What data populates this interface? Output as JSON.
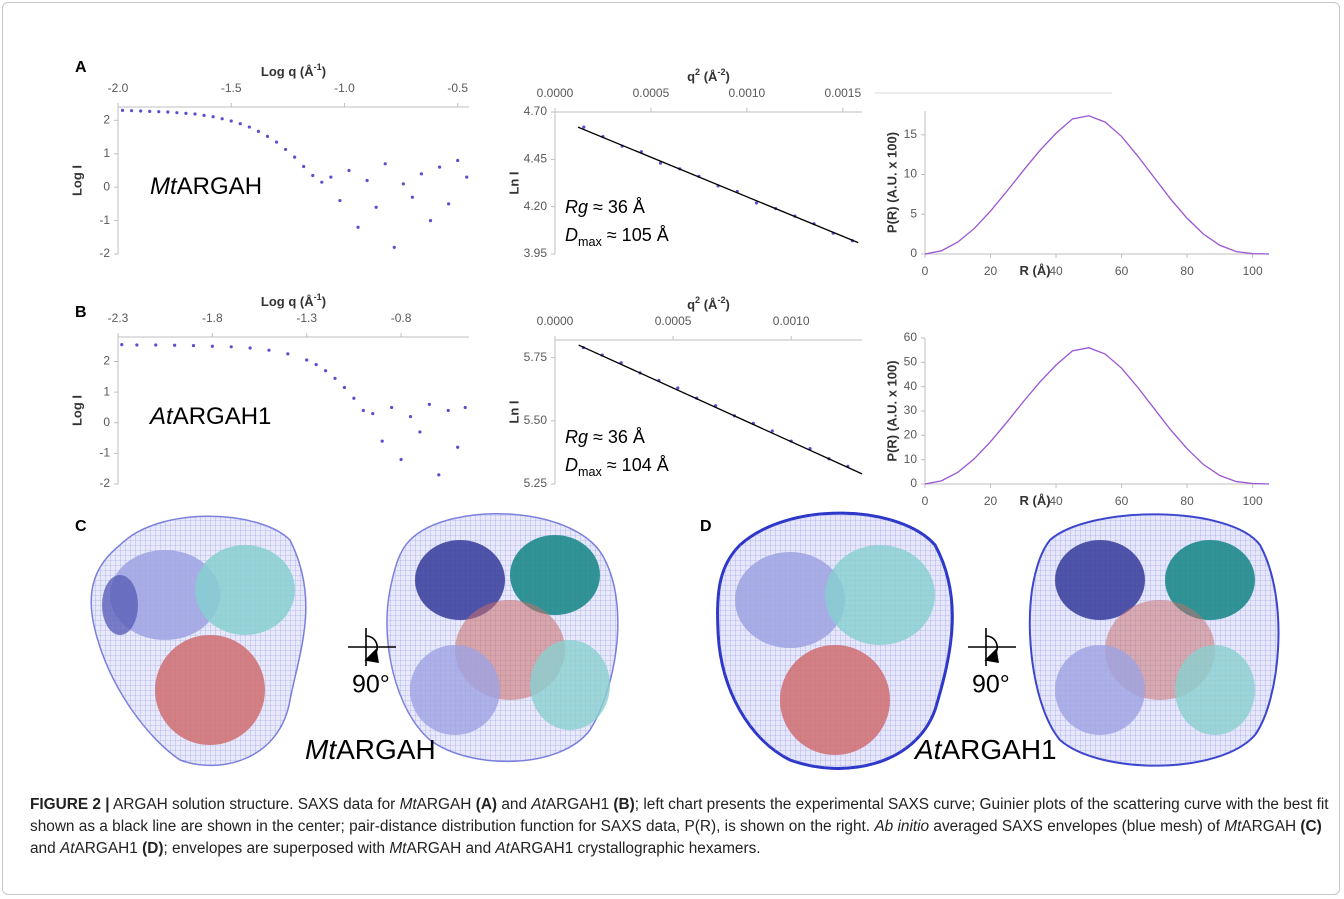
{
  "panel_labels": {
    "a": "A",
    "b": "B",
    "c": "C",
    "d": "D"
  },
  "chart_data": [
    {
      "type": "scatter",
      "xaxis": "top",
      "color": "#5a4fcf",
      "x_label": [
        {
          "text": "Log q (Å"
        },
        {
          "text": "-1",
          "style": "sup"
        },
        {
          "text": ")"
        }
      ],
      "y_label": "Log I",
      "x": [
        -1.98,
        -1.94,
        -1.9,
        -1.86,
        -1.82,
        -1.78,
        -1.74,
        -1.7,
        -1.66,
        -1.62,
        -1.58,
        -1.54,
        -1.5,
        -1.46,
        -1.42,
        -1.38,
        -1.34,
        -1.3,
        -1.26,
        -1.22,
        -1.18,
        -1.14,
        -1.1,
        -1.06,
        -1.02,
        -0.98,
        -0.94,
        -0.9,
        -0.86,
        -0.82,
        -0.78,
        -0.74,
        -0.7,
        -0.66,
        -0.62,
        -0.58,
        -0.54,
        -0.5,
        -0.46
      ],
      "values": [
        2.3,
        2.29,
        2.28,
        2.27,
        2.26,
        2.25,
        2.23,
        2.21,
        2.19,
        2.15,
        2.11,
        2.05,
        1.98,
        1.9,
        1.8,
        1.67,
        1.52,
        1.35,
        1.13,
        0.9,
        0.62,
        0.35,
        0.15,
        0.3,
        -0.4,
        0.5,
        -1.2,
        0.2,
        -0.6,
        0.7,
        -1.8,
        0.1,
        -0.3,
        0.4,
        -1.0,
        0.6,
        -0.5,
        0.8,
        0.3
      ],
      "xlim": [
        -2.0,
        -0.45
      ],
      "ylim": [
        -2,
        2.4
      ],
      "xticks": [
        {
          "value": -2,
          "label": "-2.0"
        },
        -1.5,
        {
          "value": -1,
          "label": "-1.0"
        },
        -0.5
      ],
      "yticks": [
        -2,
        -1,
        0,
        1,
        2
      ],
      "annotations": [
        [
          {
            "text": "Mt",
            "style": "italic"
          },
          {
            "text": "ARGAH"
          }
        ]
      ]
    },
    {
      "type": "scatter",
      "xaxis": "top",
      "color": "#5a4fcf",
      "x_label": [
        {
          "text": "q"
        },
        {
          "text": "2",
          "style": "sup"
        },
        {
          "text": " (Å"
        },
        {
          "text": "-2",
          "style": "sup"
        },
        {
          "text": ")"
        }
      ],
      "y_label": "Ln I",
      "x": [
        0.00015,
        0.00025,
        0.00035,
        0.00045,
        0.00055,
        0.00065,
        0.00075,
        0.00085,
        0.00095,
        0.00105,
        0.00115,
        0.00125,
        0.00135,
        0.00145,
        0.00155
      ],
      "values": [
        4.62,
        4.57,
        4.52,
        4.49,
        4.43,
        4.4,
        4.36,
        4.31,
        4.28,
        4.22,
        4.19,
        4.15,
        4.11,
        4.06,
        4.02
      ],
      "fit": {
        "x": [
          0.00012,
          0.00158
        ],
        "values": [
          4.62,
          4.01
        ],
        "color": "#000000"
      },
      "xlim": [
        0,
        0.0016
      ],
      "ylim": [
        3.95,
        4.7
      ],
      "xticks": [
        {
          "value": 0,
          "label": "0.0000"
        },
        0.0005,
        {
          "value": 0.001,
          "label": "0.0010"
        },
        0.0015
      ],
      "yticks": [
        3.95,
        {
          "value": 4.2,
          "label": "4.20"
        },
        4.45,
        {
          "value": 4.7,
          "label": "4.70"
        }
      ],
      "annotations": [
        [
          {
            "text": "Rg",
            "style": "italic"
          },
          {
            "text": " ≈ 36 Å"
          }
        ],
        [
          {
            "text": "D",
            "style": "italic"
          },
          {
            "text": "max",
            "style": "sub"
          },
          {
            "text": " ≈ 105 Å"
          }
        ]
      ]
    },
    {
      "type": "line",
      "xaxis": "bottom",
      "color": "#9b55d3",
      "x_label": [
        {
          "text": "R (Å)"
        }
      ],
      "y_label": "P(R) (A.U. x 100)",
      "x": [
        0,
        5,
        10,
        15,
        20,
        25,
        30,
        35,
        40,
        45,
        50,
        55,
        60,
        65,
        70,
        75,
        80,
        85,
        90,
        95,
        100,
        105
      ],
      "values": [
        0,
        0.4,
        1.5,
        3.2,
        5.4,
        7.9,
        10.5,
        13.0,
        15.2,
        17.0,
        17.4,
        16.6,
        14.8,
        12.3,
        9.6,
        6.9,
        4.5,
        2.5,
        1.1,
        0.3,
        0.05,
        0
      ],
      "xlim": [
        0,
        105
      ],
      "ylim": [
        0,
        18
      ],
      "xticks": [
        0,
        20,
        40,
        60,
        80,
        100
      ],
      "yticks": [
        0,
        5,
        10,
        15
      ]
    },
    {
      "type": "scatter",
      "xaxis": "top",
      "color": "#5a4fcf",
      "x_label": [
        {
          "text": "Log q (Å"
        },
        {
          "text": "-1",
          "style": "sup"
        },
        {
          "text": ")"
        }
      ],
      "y_label": "Log I",
      "x": [
        -2.28,
        -2.2,
        -2.1,
        -2.0,
        -1.9,
        -1.8,
        -1.7,
        -1.6,
        -1.5,
        -1.4,
        -1.3,
        -1.25,
        -1.2,
        -1.15,
        -1.1,
        -1.05,
        -1.0,
        -0.95,
        -0.9,
        -0.85,
        -0.8,
        -0.75,
        -0.7,
        -0.65,
        -0.6,
        -0.55,
        -0.5,
        -0.46
      ],
      "values": [
        2.55,
        2.54,
        2.54,
        2.53,
        2.52,
        2.5,
        2.48,
        2.44,
        2.37,
        2.25,
        2.05,
        1.9,
        1.7,
        1.45,
        1.15,
        0.8,
        0.4,
        0.3,
        -0.6,
        0.5,
        -1.2,
        0.2,
        -0.3,
        0.6,
        -1.7,
        0.4,
        -0.8,
        0.5
      ],
      "xlim": [
        -2.3,
        -0.44
      ],
      "ylim": [
        -2,
        2.8
      ],
      "xticks": [
        -2.3,
        -1.8,
        -1.3,
        -0.8
      ],
      "yticks": [
        -2,
        -1,
        0,
        1,
        2
      ],
      "annotations": [
        [
          {
            "text": "At",
            "style": "italic"
          },
          {
            "text": "ARGAH1"
          }
        ]
      ]
    },
    {
      "type": "scatter",
      "xaxis": "top",
      "color": "#5a4fcf",
      "x_label": [
        {
          "text": "q"
        },
        {
          "text": "2",
          "style": "sup"
        },
        {
          "text": " (Å"
        },
        {
          "text": "-2",
          "style": "sup"
        },
        {
          "text": ")"
        }
      ],
      "y_label": "Ln I",
      "x": [
        0.00012,
        0.0002,
        0.00028,
        0.00036,
        0.00044,
        0.00052,
        0.0006,
        0.00068,
        0.00076,
        0.00084,
        0.00092,
        0.001,
        0.00108,
        0.00116,
        0.00124
      ],
      "values": [
        5.79,
        5.76,
        5.73,
        5.69,
        5.66,
        5.63,
        5.59,
        5.56,
        5.52,
        5.49,
        5.46,
        5.42,
        5.39,
        5.35,
        5.32
      ],
      "fit": {
        "x": [
          0.0001,
          0.0013
        ],
        "values": [
          5.8,
          5.29
        ],
        "color": "#000000"
      },
      "xlim": [
        0,
        0.0013
      ],
      "ylim": [
        5.25,
        5.82
      ],
      "xticks": [
        {
          "value": 0,
          "label": "0.0000"
        },
        0.0005,
        {
          "value": 0.001,
          "label": "0.0010"
        }
      ],
      "yticks": [
        5.25,
        {
          "value": 5.5,
          "label": "5.50"
        },
        5.75
      ],
      "annotations": [
        [
          {
            "text": "Rg",
            "style": "italic"
          },
          {
            "text": " ≈ 36 Å"
          }
        ],
        [
          {
            "text": "D",
            "style": "italic"
          },
          {
            "text": "max",
            "style": "sub"
          },
          {
            "text": " ≈ 104 Å"
          }
        ]
      ]
    },
    {
      "type": "line",
      "xaxis": "bottom",
      "color": "#9b55d3",
      "x_label": [
        {
          "text": "R (Å)"
        }
      ],
      "y_label": "P(R) (A.U. x 100)",
      "x": [
        0,
        5,
        10,
        15,
        20,
        25,
        30,
        35,
        40,
        45,
        50,
        55,
        60,
        65,
        70,
        75,
        80,
        85,
        90,
        95,
        100,
        105
      ],
      "values": [
        0,
        1.3,
        4.8,
        10.3,
        17.4,
        25.4,
        33.8,
        41.8,
        48.9,
        54.7,
        56,
        53.4,
        47.6,
        39.6,
        30.9,
        22.2,
        14.5,
        8.0,
        3.5,
        1.0,
        0.2,
        0
      ],
      "xlim": [
        0,
        105
      ],
      "ylim": [
        0,
        60
      ],
      "xticks": [
        0,
        20,
        40,
        60,
        80,
        100
      ],
      "yticks": [
        0,
        10,
        20,
        30,
        40,
        50,
        60
      ]
    }
  ],
  "structures": [
    {
      "name": [
        {
          "text": "Mt",
          "style": "italic"
        },
        {
          "text": "ARGAH"
        }
      ],
      "rotation": "90°"
    },
    {
      "name": [
        {
          "text": "At",
          "style": "italic"
        },
        {
          "text": "ARGAH1"
        }
      ],
      "rotation": "90°"
    }
  ],
  "caption": [
    {
      "text": "FIGURE 2 |",
      "style": "bold"
    },
    {
      "text": " ARGAH solution structure. SAXS data for "
    },
    {
      "text": "Mt",
      "style": "italic"
    },
    {
      "text": "ARGAH "
    },
    {
      "text": "(A)",
      "style": "bold"
    },
    {
      "text": " and "
    },
    {
      "text": "At",
      "style": "italic"
    },
    {
      "text": "ARGAH1 "
    },
    {
      "text": "(B)",
      "style": "bold"
    },
    {
      "text": "; left chart presents the experimental SAXS curve; Guinier plots of the scattering curve with the best fit shown as a black line are shown in the center; pair-distance distribution function for SAXS data, P(R), is shown on the right. "
    },
    {
      "text": "Ab initio",
      "style": "italic"
    },
    {
      "text": " averaged SAXS envelopes (blue mesh) of "
    },
    {
      "text": "Mt",
      "style": "italic"
    },
    {
      "text": "ARGAH "
    },
    {
      "text": "(C)",
      "style": "bold"
    },
    {
      "text": " and "
    },
    {
      "text": "At",
      "style": "italic"
    },
    {
      "text": "ARGAH1 "
    },
    {
      "text": "(D)",
      "style": "bold"
    },
    {
      "text": "; envelopes are superposed with "
    },
    {
      "text": "Mt",
      "style": "italic"
    },
    {
      "text": "ARGAH and "
    },
    {
      "text": "At",
      "style": "italic"
    },
    {
      "text": "ARGAH1 crystallographic hexamers."
    }
  ]
}
